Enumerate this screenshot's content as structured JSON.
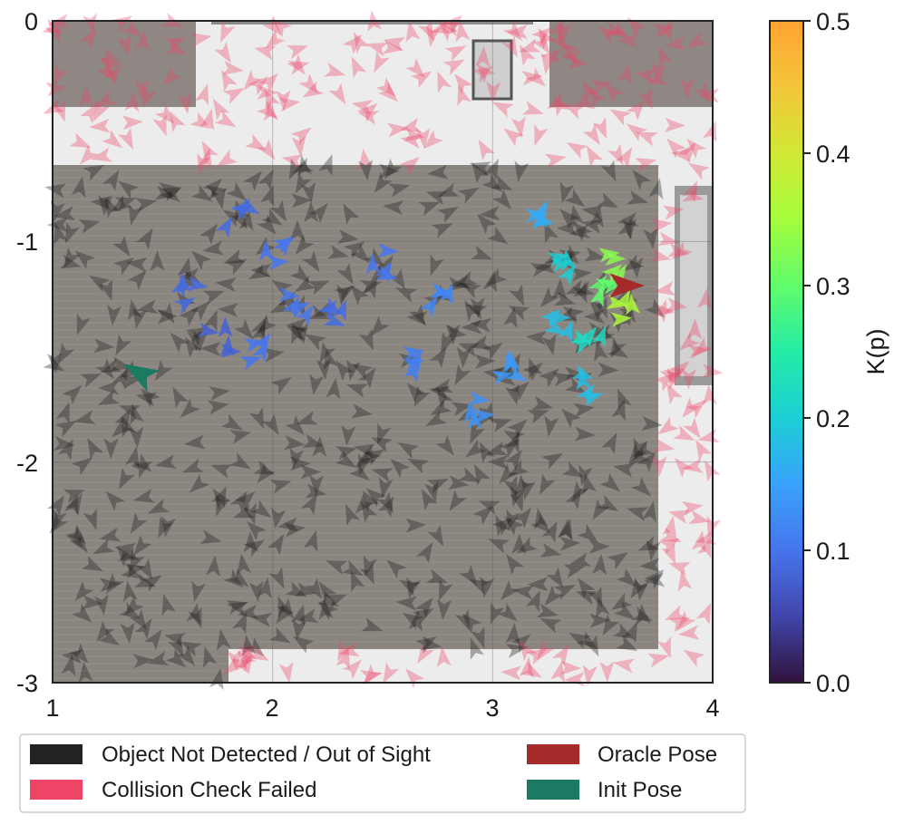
{
  "chart_data": {
    "type": "scatter",
    "subtype": "pose-arrow-field over floor-plan image",
    "xlim": [
      1,
      4
    ],
    "ylim": [
      -3,
      0
    ],
    "x_ticks": [
      "1",
      "2",
      "3",
      "4"
    ],
    "y_ticks": [
      "0",
      "-1",
      "-2",
      "-3"
    ],
    "grid": true,
    "colorbar": {
      "label": "K(p)",
      "range": [
        0.0,
        0.5
      ],
      "ticks": [
        "0.0",
        "0.1",
        "0.2",
        "0.3",
        "0.4",
        "0.5"
      ],
      "colormap": "turbo"
    },
    "legend": {
      "placement": "bottom",
      "items": [
        {
          "label": "Object Not Detected / Out of Sight",
          "color": "#222222"
        },
        {
          "label": "Oracle Pose",
          "color": "#a52a2a"
        },
        {
          "label": "Collision Check Failed",
          "color": "#ee4466"
        },
        {
          "label": "Init Pose",
          "color": "#1a7a62"
        }
      ]
    },
    "oracle_pose": {
      "x": 3.6,
      "y": -1.2,
      "heading_deg": 0
    },
    "init_pose": {
      "x": 1.4,
      "y": -1.6,
      "heading_deg": 150
    },
    "scored_poses": [
      {
        "x": 1.85,
        "y": -0.9,
        "k": 0.09
      },
      {
        "x": 2.0,
        "y": -1.05,
        "k": 0.1
      },
      {
        "x": 1.6,
        "y": -1.25,
        "k": 0.09
      },
      {
        "x": 1.75,
        "y": -1.45,
        "k": 0.08
      },
      {
        "x": 1.9,
        "y": -1.5,
        "k": 0.1
      },
      {
        "x": 2.1,
        "y": -1.3,
        "k": 0.1
      },
      {
        "x": 2.3,
        "y": -1.35,
        "k": 0.09
      },
      {
        "x": 2.5,
        "y": -1.1,
        "k": 0.1
      },
      {
        "x": 2.75,
        "y": -1.25,
        "k": 0.12
      },
      {
        "x": 2.65,
        "y": -1.55,
        "k": 0.11
      },
      {
        "x": 2.9,
        "y": -1.75,
        "k": 0.13
      },
      {
        "x": 3.1,
        "y": -1.6,
        "k": 0.14
      },
      {
        "x": 3.2,
        "y": -0.85,
        "k": 0.16
      },
      {
        "x": 3.35,
        "y": -1.1,
        "k": 0.2
      },
      {
        "x": 3.3,
        "y": -1.35,
        "k": 0.18
      },
      {
        "x": 3.45,
        "y": -1.45,
        "k": 0.22
      },
      {
        "x": 3.5,
        "y": -1.25,
        "k": 0.3
      },
      {
        "x": 3.55,
        "y": -1.1,
        "k": 0.33
      },
      {
        "x": 3.6,
        "y": -1.3,
        "k": 0.36
      },
      {
        "x": 3.45,
        "y": -1.65,
        "k": 0.18
      }
    ]
  }
}
